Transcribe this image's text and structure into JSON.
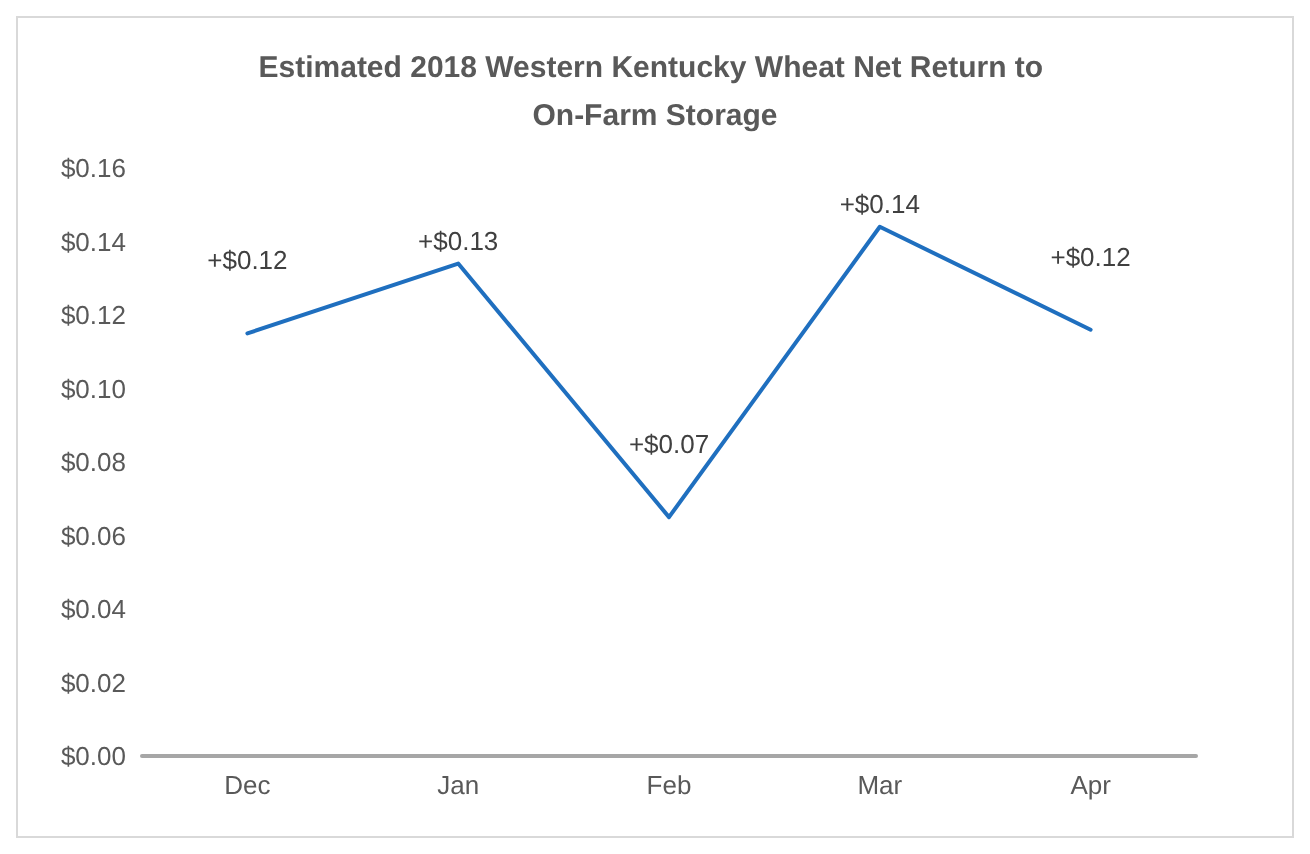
{
  "chart_data": {
    "type": "line",
    "title": "Estimated 2018 Western Kentucky Wheat Net Return to On-Farm Storage",
    "categories": [
      "Dec",
      "Jan",
      "Feb",
      "Mar",
      "Apr"
    ],
    "series": [
      {
        "color": "#1f6fbf",
        "values": [
          0.115,
          0.134,
          0.065,
          0.144,
          0.116
        ],
        "value_labels": [
          "+$0.12",
          "+$0.13",
          "+$0.07",
          "+$0.14",
          "+$0.12"
        ]
      }
    ],
    "ylim": [
      0,
      0.16
    ],
    "yticks": [
      {
        "value": 0,
        "label": "$0.00"
      },
      {
        "value": 0.02,
        "label": "$0.02"
      },
      {
        "value": 0.04,
        "label": "$0.04"
      },
      {
        "value": 0.06,
        "label": "$0.06"
      },
      {
        "value": 0.08,
        "label": "$0.08"
      },
      {
        "value": 0.1,
        "label": "$0.10"
      },
      {
        "value": 0.12,
        "label": "$0.12"
      },
      {
        "value": 0.14,
        "label": "$0.14"
      },
      {
        "value": 0.16,
        "label": "$0.16"
      }
    ],
    "grid": false,
    "marker": "none"
  }
}
